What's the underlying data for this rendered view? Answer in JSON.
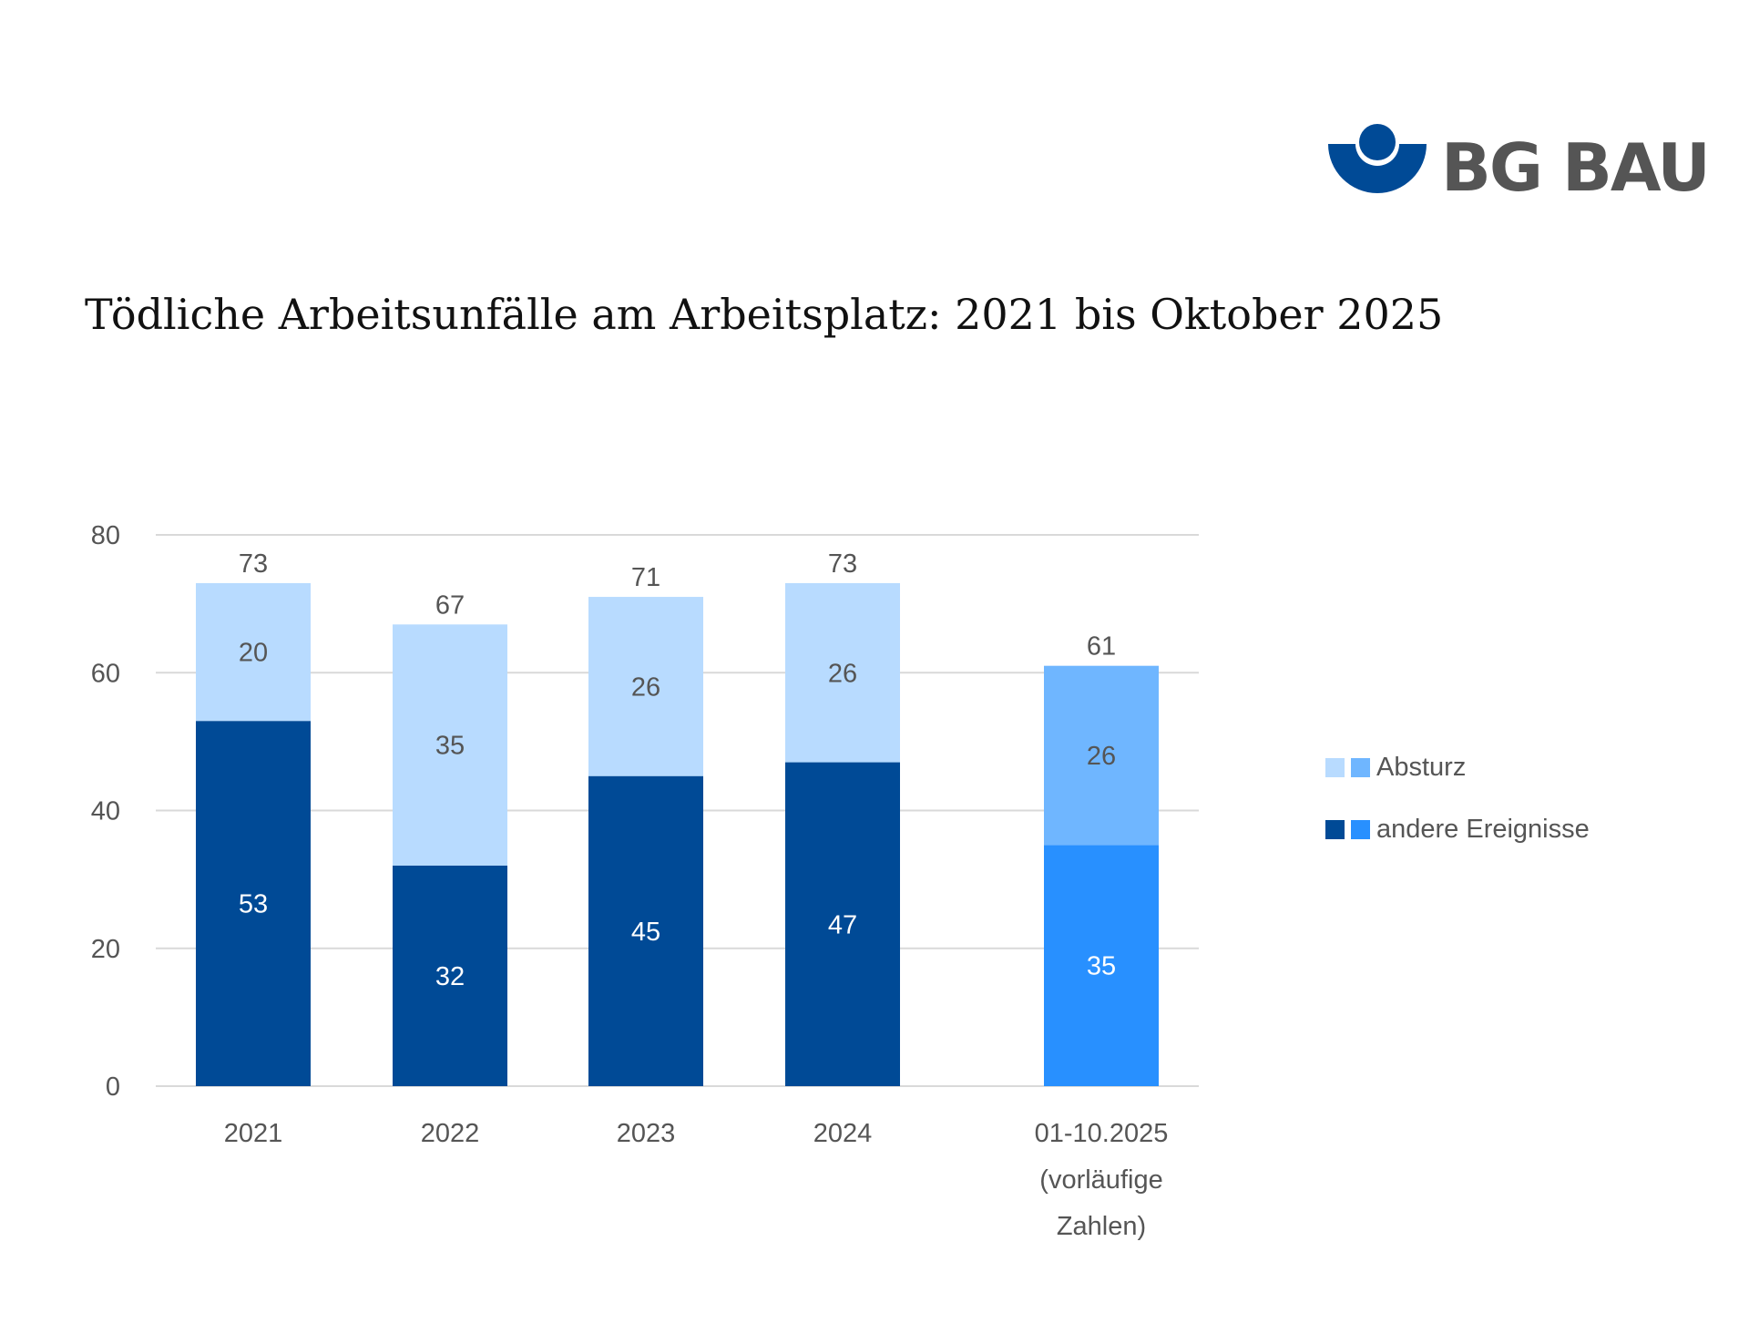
{
  "logo": {
    "text": "BG BAU",
    "color": "#004a96"
  },
  "chart_data": {
    "type": "bar",
    "stacked": true,
    "title": "Tödliche Arbeitsunfälle am Arbeitsplatz: 2021 bis Oktober 2025",
    "categories": [
      [
        "2021"
      ],
      [
        "2022"
      ],
      [
        "2023"
      ],
      [
        "2024"
      ],
      [
        "01-10.2025",
        "(vorläufige",
        "Zahlen)"
      ]
    ],
    "series": [
      {
        "name": "andere Ereignisse",
        "values": [
          53,
          32,
          45,
          47,
          35
        ],
        "colors": [
          "#004a96",
          "#004a96",
          "#004a96",
          "#004a96",
          "#2890ff"
        ],
        "label_color": "#ffffff"
      },
      {
        "name": "Absturz",
        "values": [
          20,
          35,
          26,
          26,
          26
        ],
        "colors": [
          "#b8dbff",
          "#b8dbff",
          "#b8dbff",
          "#b8dbff",
          "#6fb6ff"
        ],
        "label_color": "#555555"
      }
    ],
    "totals": [
      73,
      67,
      71,
      73,
      61
    ],
    "ylim": [
      0,
      80
    ],
    "yticks": [
      0,
      20,
      40,
      60,
      80
    ],
    "grid": true,
    "legend_position": "right",
    "legend": [
      {
        "label": "Absturz",
        "colors": [
          "#b8dbff",
          "#6fb6ff"
        ]
      },
      {
        "label": "andere Ereignisse",
        "colors": [
          "#004a96",
          "#2890ff"
        ]
      }
    ]
  }
}
